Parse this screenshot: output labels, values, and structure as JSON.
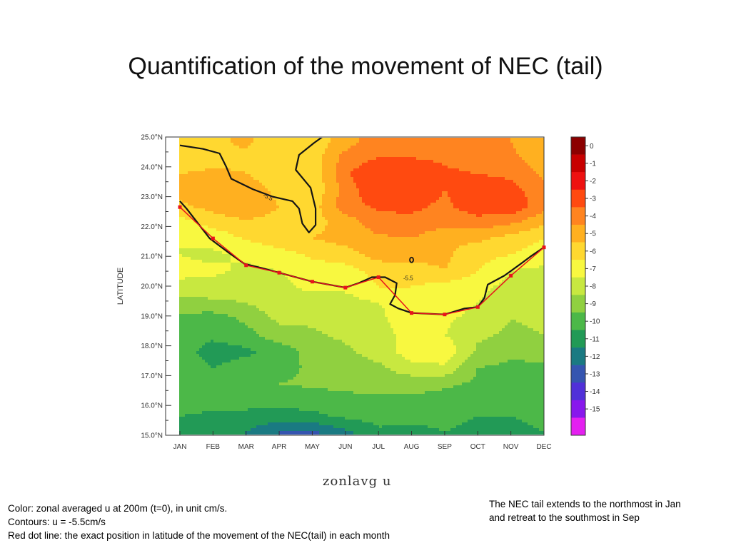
{
  "slide": {
    "title": "Quantification of the movement of NEC (tail)",
    "plot_name": "zonlavg  u",
    "caption_left": [
      "Color: zonal averaged u at 200m (t=0), in unit cm/s.",
      "Contours: u = -5.5cm/s",
      "Red dot line: the exact position in latitude of the movement of the NEC(tail) in each month"
    ],
    "caption_right": [
      "The NEC tail extends to the northmost in Jan",
      "and retreat to the southmost  in Sep"
    ]
  },
  "chart_data": {
    "type": "heatmap",
    "title": "",
    "xlabel": "",
    "ylabel": "LATITUDE",
    "x_categories": [
      "JAN",
      "FEB",
      "MAR",
      "APR",
      "MAY",
      "JUN",
      "JUL",
      "AUG",
      "SEP",
      "OCT",
      "NOV",
      "DEC"
    ],
    "y_ticks": [
      {
        "value": 15,
        "label": "15.0°N"
      },
      {
        "value": 16,
        "label": "16.0°N"
      },
      {
        "value": 17,
        "label": "17.0°N"
      },
      {
        "value": 18,
        "label": "18.0°N"
      },
      {
        "value": 19,
        "label": "19.0°N"
      },
      {
        "value": 20,
        "label": "20.0°N"
      },
      {
        "value": 21,
        "label": "21.0°N"
      },
      {
        "value": 22,
        "label": "22.0°N"
      },
      {
        "value": 23,
        "label": "23.0°N"
      },
      {
        "value": 24,
        "label": "24.0°N"
      },
      {
        "value": 25,
        "label": "25.0°N"
      }
    ],
    "ylim": [
      15,
      25
    ],
    "colorbar": {
      "labels": [
        "0",
        "-1",
        "-2",
        "-3",
        "-4",
        "-5",
        "-6",
        "-7",
        "-8",
        "-9",
        "-10",
        "-11",
        "-12",
        "-13",
        "-14",
        "-15"
      ],
      "colors": [
        "#8c0000",
        "#c80000",
        "#ee1111",
        "#ff4a10",
        "#ff8420",
        "#ffb020",
        "#ffd830",
        "#f8f840",
        "#c8e840",
        "#90d040",
        "#4cb848",
        "#229a56",
        "#1a7a82",
        "#3555b0",
        "#5030d8",
        "#8818ec",
        "#e420f0"
      ]
    },
    "contour_label": "-5.5",
    "contour_value": -5.5,
    "red_dot_series": {
      "months": [
        "JAN",
        "FEB",
        "MAR",
        "APR",
        "MAY",
        "JUN",
        "JUL",
        "AUG",
        "SEP",
        "OCT",
        "NOV",
        "DEC"
      ],
      "latitude": [
        22.65,
        21.6,
        20.7,
        20.45,
        20.15,
        19.95,
        20.3,
        19.1,
        19.05,
        19.3,
        20.35,
        21.3
      ]
    },
    "field_rows_north_to_south": [
      [
        -5.4,
        -5.2,
        -4.8,
        -5.6,
        -5.6,
        -4.5,
        -3.2,
        -3.2,
        -3.6,
        -3.8,
        -4.0,
        -4.8
      ],
      [
        -5.6,
        -5.4,
        -5.2,
        -5.9,
        -5.6,
        -3.6,
        -3.0,
        -3.0,
        -3.2,
        -3.6,
        -3.8,
        -4.5
      ],
      [
        -5.0,
        -4.8,
        -5.0,
        -5.8,
        -5.8,
        -3.2,
        -2.0,
        -2.2,
        -2.8,
        -3.0,
        -3.2,
        -4.2
      ],
      [
        -4.6,
        -4.4,
        -4.2,
        -5.4,
        -5.8,
        -3.6,
        -2.0,
        -2.2,
        -3.0,
        -2.5,
        -2.6,
        -3.8
      ],
      [
        -5.2,
        -4.6,
        -4.0,
        -5.0,
        -5.5,
        -3.4,
        -2.8,
        -2.8,
        -3.2,
        -2.4,
        -2.2,
        -3.6
      ],
      [
        -6.4,
        -5.6,
        -5.2,
        -5.4,
        -5.4,
        -4.6,
        -3.4,
        -3.2,
        -3.6,
        -3.4,
        -3.8,
        -4.8
      ],
      [
        -7.0,
        -6.6,
        -5.9,
        -5.4,
        -5.0,
        -4.6,
        -4.2,
        -4.0,
        -4.8,
        -4.8,
        -5.4,
        -6.0
      ],
      [
        -7.0,
        -7.2,
        -6.8,
        -6.4,
        -5.8,
        -5.4,
        -4.6,
        -4.6,
        -4.8,
        -5.6,
        -6.0,
        -6.6
      ],
      [
        -6.8,
        -6.8,
        -7.2,
        -7.0,
        -6.6,
        -6.4,
        -5.6,
        -5.4,
        -5.0,
        -6.0,
        -7.0,
        -7.2
      ],
      [
        -7.2,
        -7.4,
        -7.6,
        -7.2,
        -6.8,
        -6.8,
        -6.0,
        -6.0,
        -6.4,
        -6.6,
        -7.4,
        -7.8
      ],
      [
        -8.6,
        -8.2,
        -8.0,
        -7.4,
        -7.4,
        -7.4,
        -7.0,
        -6.8,
        -6.4,
        -7.0,
        -7.8,
        -8.0
      ],
      [
        -9.2,
        -9.6,
        -8.8,
        -7.8,
        -7.8,
        -7.4,
        -7.2,
        -6.4,
        -6.8,
        -7.4,
        -8.0,
        -7.8
      ],
      [
        -9.6,
        -9.8,
        -9.4,
        -8.4,
        -8.2,
        -7.8,
        -7.4,
        -6.6,
        -7.0,
        -7.8,
        -8.2,
        -8.0
      ],
      [
        -9.6,
        -10.4,
        -10.2,
        -9.6,
        -8.6,
        -8.2,
        -7.6,
        -6.4,
        -6.2,
        -8.2,
        -8.8,
        -8.6
      ],
      [
        -9.4,
        -10.0,
        -9.6,
        -9.4,
        -8.8,
        -8.4,
        -8.2,
        -7.4,
        -7.2,
        -9.0,
        -9.2,
        -9.2
      ],
      [
        -9.0,
        -9.4,
        -9.2,
        -9.0,
        -8.8,
        -8.6,
        -8.6,
        -8.6,
        -8.8,
        -9.2,
        -9.2,
        -9.2
      ],
      [
        -9.4,
        -9.6,
        -9.4,
        -9.6,
        -9.6,
        -9.4,
        -9.2,
        -9.2,
        -9.4,
        -9.4,
        -9.6,
        -9.6
      ],
      [
        -10.0,
        -10.2,
        -10.4,
        -10.4,
        -10.2,
        -9.8,
        -9.6,
        -9.8,
        -9.8,
        -10.0,
        -10.0,
        -9.8
      ],
      [
        -10.4,
        -10.8,
        -11.0,
        -12.0,
        -12.2,
        -11.2,
        -10.2,
        -10.2,
        -10.0,
        -10.2,
        -10.2,
        -10.0
      ]
    ]
  }
}
